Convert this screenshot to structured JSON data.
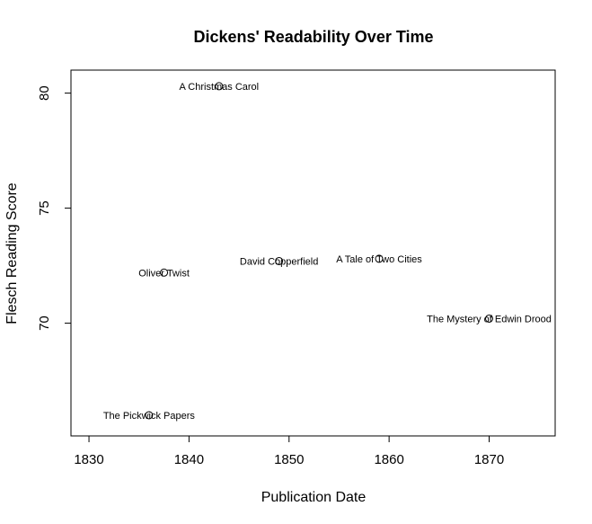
{
  "chart_data": {
    "type": "scatter",
    "title": "Dickens' Readability Over Time",
    "xlabel": "Publication Date",
    "ylabel": "Flesch Reading Score",
    "xlim": [
      1828.2,
      1876.6
    ],
    "ylim": [
      65.1,
      81.0
    ],
    "xticks": [
      1830,
      1840,
      1850,
      1860,
      1870
    ],
    "yticks": [
      70,
      75,
      80
    ],
    "grid": false,
    "legend": "none",
    "marker": "open-circle",
    "points": [
      {
        "x": 1836,
        "y": 66.0,
        "label": "The Pickwick Papers"
      },
      {
        "x": 1837.5,
        "y": 72.2,
        "label": "Oliver Twist"
      },
      {
        "x": 1843,
        "y": 80.3,
        "label": "A Christmas Carol"
      },
      {
        "x": 1849,
        "y": 72.7,
        "label": "David Copperfield"
      },
      {
        "x": 1859,
        "y": 72.8,
        "label": "A Tale of Two Cities"
      },
      {
        "x": 1870,
        "y": 70.2,
        "label": "The Mystery of Edwin Drood"
      }
    ]
  }
}
